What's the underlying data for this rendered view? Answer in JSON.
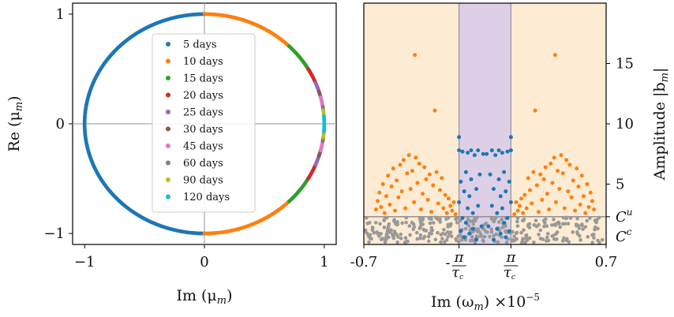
{
  "chart_data": [
    {
      "type": "scatter",
      "xlabel": "Im (μ",
      "xlabel_sub": "m",
      "xlabel_close": ")",
      "ylabel": "Re (μ",
      "ylabel_sub": "m",
      "ylabel_close": ")",
      "xlim": [
        -1.1,
        1.1
      ],
      "ylim": [
        -1.1,
        1.1
      ],
      "xticks": [
        {
          "v": -1,
          "label": "−1"
        },
        {
          "v": 0,
          "label": "0"
        },
        {
          "v": 1,
          "label": "1"
        }
      ],
      "yticks": [
        {
          "v": -1,
          "label": "−1"
        },
        {
          "v": 0,
          "label": "0"
        },
        {
          "v": 1,
          "label": "1"
        }
      ],
      "legend_position": "center",
      "series": [
        {
          "name": "5 days",
          "color": "#1f77b4",
          "angle_ranges_deg": [
            [
              90,
              270
            ]
          ]
        },
        {
          "name": "10 days",
          "color": "#ff7f0e",
          "angle_ranges_deg": [
            [
              45,
              90
            ],
            [
              -90,
              -45
            ]
          ]
        },
        {
          "name": "15 days",
          "color": "#2ca02c",
          "angle_ranges_deg": [
            [
              30,
              45
            ],
            [
              -45,
              -30
            ]
          ]
        },
        {
          "name": "20 days",
          "color": "#d62728",
          "angle_ranges_deg": [
            [
              22,
              30
            ],
            [
              -30,
              -22
            ]
          ]
        },
        {
          "name": "25 days",
          "color": "#9467bd",
          "angle_ranges_deg": [
            [
              17,
              22
            ],
            [
              -22,
              -17
            ]
          ]
        },
        {
          "name": "30 days",
          "color": "#8c564b",
          "angle_ranges_deg": [
            [
              14,
              17
            ],
            [
              -17,
              -14
            ]
          ]
        },
        {
          "name": "45 days",
          "color": "#e377c2",
          "angle_ranges_deg": [
            [
              9,
              14
            ],
            [
              -14,
              -9
            ]
          ]
        },
        {
          "name": "60 days",
          "color": "#7f7f7f",
          "angle_ranges_deg": [
            [
              7,
              9
            ],
            [
              -9,
              -7
            ]
          ]
        },
        {
          "name": "90 days",
          "color": "#bcbd22",
          "angle_ranges_deg": [
            [
              4,
              7
            ],
            [
              -7,
              -4
            ]
          ]
        },
        {
          "name": "120 days",
          "color": "#17becf",
          "angle_ranges_deg": [
            [
              -4,
              4
            ]
          ]
        }
      ]
    },
    {
      "type": "scatter",
      "xlabel": "Im (ω",
      "xlabel_sub": "m",
      "xlabel_close": ") ×10",
      "xlabel_exp": "−5",
      "ylabel": "Amplitude |b",
      "ylabel_sub": "m",
      "ylabel_close": "|",
      "xlim": [
        -0.7,
        0.7
      ],
      "ylim": [
        0,
        20
      ],
      "xticks": [
        {
          "v": -0.7,
          "label": "-0.7"
        },
        {
          "v": 0.7,
          "label": "0.7"
        }
      ],
      "pi_ticks": [
        {
          "v": -0.15,
          "sign": "-",
          "num": "π",
          "den": "τ",
          "den_sub": "c"
        },
        {
          "v": 0.15,
          "sign": "",
          "num": "π",
          "den": "τ",
          "den_sub": "c"
        }
      ],
      "yticks": [
        {
          "v": 5,
          "label": "5"
        },
        {
          "v": 10,
          "label": "10"
        },
        {
          "v": 15,
          "label": "15"
        }
      ],
      "threshold_labels": [
        {
          "v": 2.3,
          "label": "C",
          "sup": "u"
        },
        {
          "v": 0,
          "label": "C",
          "sup": "c"
        }
      ],
      "threshold_line": 2.3,
      "center_band": [
        -0.15,
        0.15
      ],
      "band_colors": {
        "outer": "#fdebd3",
        "center": "#ddd0e6"
      },
      "series": [
        {
          "name": "grey (below C^u)",
          "color": "#999999",
          "points": []
        },
        {
          "name": "orange",
          "color": "#ff7f0e",
          "points": [
            [
              -0.63,
              2.9
            ],
            [
              -0.62,
              3.6
            ],
            [
              -0.61,
              4.3
            ],
            [
              -0.6,
              3.1
            ],
            [
              -0.59,
              5.0
            ],
            [
              -0.58,
              2.6
            ],
            [
              -0.57,
              4.0
            ],
            [
              -0.56,
              5.7
            ],
            [
              -0.55,
              3.3
            ],
            [
              -0.54,
              4.8
            ],
            [
              -0.53,
              6.3
            ],
            [
              -0.52,
              2.8
            ],
            [
              -0.51,
              5.3
            ],
            [
              -0.5,
              3.9
            ],
            [
              -0.49,
              6.6
            ],
            [
              -0.48,
              4.4
            ],
            [
              -0.47,
              7.0
            ],
            [
              -0.46,
              3.0
            ],
            [
              -0.45,
              5.9
            ],
            [
              -0.44,
              7.4
            ],
            [
              -0.43,
              4.6
            ],
            [
              -0.42,
              6.1
            ],
            [
              -0.41,
              3.5
            ],
            [
              -0.405,
              15.7
            ],
            [
              -0.4,
              7.2
            ],
            [
              -0.39,
              5.1
            ],
            [
              -0.38,
              6.7
            ],
            [
              -0.37,
              2.9
            ],
            [
              -0.36,
              4.2
            ],
            [
              -0.35,
              6.4
            ],
            [
              -0.34,
              5.4
            ],
            [
              -0.33,
              3.7
            ],
            [
              -0.32,
              5.8
            ],
            [
              -0.31,
              2.7
            ],
            [
              -0.3,
              4.9
            ],
            [
              -0.29,
              11.1
            ],
            [
              -0.28,
              6.0
            ],
            [
              -0.27,
              3.4
            ],
            [
              -0.26,
              4.5
            ],
            [
              -0.25,
              5.5
            ],
            [
              -0.24,
              3.0
            ],
            [
              -0.23,
              4.1
            ],
            [
              -0.22,
              2.6
            ],
            [
              -0.21,
              3.8
            ],
            [
              -0.2,
              3.2
            ],
            [
              -0.19,
              2.8
            ],
            [
              -0.18,
              3.5
            ],
            [
              -0.17,
              2.5
            ],
            [
              0.63,
              2.9
            ],
            [
              0.62,
              3.6
            ],
            [
              0.61,
              4.3
            ],
            [
              0.6,
              3.1
            ],
            [
              0.59,
              5.0
            ],
            [
              0.58,
              2.6
            ],
            [
              0.57,
              4.0
            ],
            [
              0.56,
              5.7
            ],
            [
              0.55,
              3.3
            ],
            [
              0.54,
              4.8
            ],
            [
              0.53,
              6.3
            ],
            [
              0.52,
              2.8
            ],
            [
              0.51,
              5.3
            ],
            [
              0.5,
              3.9
            ],
            [
              0.49,
              6.6
            ],
            [
              0.48,
              4.4
            ],
            [
              0.47,
              7.0
            ],
            [
              0.46,
              3.0
            ],
            [
              0.45,
              5.9
            ],
            [
              0.44,
              7.4
            ],
            [
              0.43,
              4.6
            ],
            [
              0.42,
              6.1
            ],
            [
              0.41,
              3.5
            ],
            [
              0.405,
              15.7
            ],
            [
              0.4,
              7.2
            ],
            [
              0.39,
              5.1
            ],
            [
              0.38,
              6.7
            ],
            [
              0.37,
              2.9
            ],
            [
              0.36,
              4.2
            ],
            [
              0.35,
              6.4
            ],
            [
              0.34,
              5.4
            ],
            [
              0.33,
              3.7
            ],
            [
              0.32,
              5.8
            ],
            [
              0.31,
              2.7
            ],
            [
              0.3,
              4.9
            ],
            [
              0.29,
              11.1
            ],
            [
              0.28,
              6.0
            ],
            [
              0.27,
              3.4
            ],
            [
              0.26,
              4.5
            ],
            [
              0.25,
              5.5
            ],
            [
              0.24,
              3.0
            ],
            [
              0.23,
              4.1
            ],
            [
              0.22,
              2.6
            ],
            [
              0.21,
              3.8
            ],
            [
              0.2,
              3.2
            ],
            [
              0.19,
              2.8
            ],
            [
              0.18,
              3.5
            ],
            [
              0.17,
              2.5
            ]
          ]
        },
        {
          "name": "blue",
          "color": "#1f77b4",
          "points": [
            [
              -0.15,
              8.9
            ],
            [
              -0.15,
              7.8
            ],
            [
              -0.15,
              3.5
            ],
            [
              -0.14,
              5.2
            ],
            [
              -0.14,
              1.1
            ],
            [
              -0.13,
              7.7
            ],
            [
              -0.13,
              2.2
            ],
            [
              -0.12,
              4.4
            ],
            [
              -0.12,
              0.6
            ],
            [
              -0.11,
              6.0
            ],
            [
              -0.11,
              1.8
            ],
            [
              -0.1,
              7.6
            ],
            [
              -0.1,
              3.0
            ],
            [
              -0.09,
              4.0
            ],
            [
              -0.09,
              0.9
            ],
            [
              -0.08,
              7.8
            ],
            [
              -0.08,
              5.4
            ],
            [
              -0.07,
              2.6
            ],
            [
              -0.07,
              1.3
            ],
            [
              -0.06,
              7.4
            ],
            [
              -0.05,
              4.6
            ],
            [
              -0.05,
              0.4
            ],
            [
              -0.04,
              7.8
            ],
            [
              -0.04,
              3.2
            ],
            [
              -0.03,
              5.8
            ],
            [
              -0.02,
              1.5
            ],
            [
              -0.01,
              7.5
            ],
            [
              0.15,
              8.9
            ],
            [
              0.15,
              7.8
            ],
            [
              0.15,
              3.5
            ],
            [
              0.14,
              5.2
            ],
            [
              0.14,
              1.1
            ],
            [
              0.13,
              7.7
            ],
            [
              0.13,
              2.2
            ],
            [
              0.12,
              4.4
            ],
            [
              0.12,
              0.6
            ],
            [
              0.11,
              6.0
            ],
            [
              0.11,
              1.8
            ],
            [
              0.1,
              7.6
            ],
            [
              0.1,
              3.0
            ],
            [
              0.09,
              4.0
            ],
            [
              0.09,
              0.9
            ],
            [
              0.08,
              7.8
            ],
            [
              0.08,
              5.4
            ],
            [
              0.07,
              2.6
            ],
            [
              0.07,
              1.3
            ],
            [
              0.06,
              7.4
            ],
            [
              0.05,
              4.6
            ],
            [
              0.05,
              0.4
            ],
            [
              0.04,
              7.8
            ],
            [
              0.04,
              3.2
            ],
            [
              0.03,
              5.8
            ],
            [
              0.02,
              1.5
            ],
            [
              0.01,
              7.5
            ]
          ]
        }
      ]
    }
  ]
}
